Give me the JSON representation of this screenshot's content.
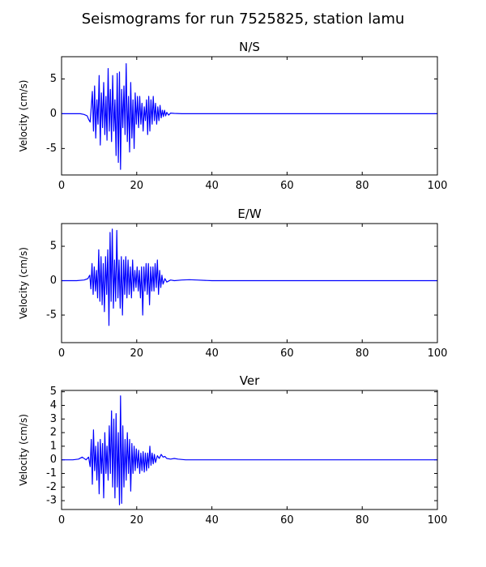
{
  "figure": {
    "suptitle": "Seismograms for run 7525825, station lamu"
  },
  "chart_data": [
    {
      "type": "line",
      "title": "N/S",
      "xlabel": "",
      "ylabel": "Velocity (cm/s)",
      "xlim": [
        0,
        100
      ],
      "ylim": [
        -8.8,
        8.2
      ],
      "xticks": [
        0,
        20,
        40,
        60,
        80,
        100
      ],
      "yticks": [
        -5,
        0,
        5
      ],
      "grid": false,
      "color": "#0000ff",
      "series": [
        {
          "x": [
            0,
            3,
            5,
            6,
            6.8,
            7.2,
            7.6,
            7.9,
            8.2,
            8.5,
            8.8,
            9.1,
            9.4,
            9.7,
            10.0,
            10.3,
            10.6,
            10.9,
            11.2,
            11.5,
            11.8,
            12.1,
            12.4,
            12.7,
            13.0,
            13.3,
            13.6,
            13.9,
            14.2,
            14.5,
            14.8,
            15.1,
            15.4,
            15.7,
            16.0,
            16.3,
            16.6,
            16.9,
            17.2,
            17.5,
            17.8,
            18.1,
            18.4,
            18.7,
            19.0,
            19.3,
            19.6,
            19.9,
            20.2,
            20.5,
            20.8,
            21.1,
            21.4,
            21.7,
            22.0,
            22.3,
            22.6,
            22.9,
            23.2,
            23.5,
            23.8,
            24.1,
            24.4,
            24.7,
            25.0,
            25.3,
            25.6,
            25.9,
            26.2,
            26.5,
            26.8,
            27.1,
            27.4,
            27.7,
            28.0,
            28.5,
            29.0,
            30,
            32,
            35,
            40,
            50,
            60,
            70,
            80,
            90,
            100
          ],
          "y": [
            0.0,
            0.0,
            0.0,
            -0.1,
            -0.3,
            -0.8,
            -1.2,
            1.0,
            3.2,
            -2.5,
            4.0,
            -3.5,
            2.0,
            -1.5,
            5.5,
            -4.5,
            3.0,
            -2.0,
            4.5,
            -3.0,
            2.5,
            -3.8,
            6.5,
            -2.5,
            3.5,
            -4.0,
            5.5,
            -2.5,
            2.0,
            -6.0,
            5.8,
            -7.0,
            6.0,
            -8.0,
            3.5,
            -2.0,
            4.0,
            -3.0,
            7.2,
            -4.0,
            2.5,
            -5.5,
            4.5,
            -3.5,
            2.0,
            -5.0,
            3.0,
            -1.5,
            2.5,
            -2.0,
            2.5,
            -1.5,
            1.5,
            -2.5,
            1.0,
            -1.0,
            2.0,
            -3.0,
            2.5,
            -2.5,
            2.0,
            -1.5,
            2.5,
            -1.0,
            1.5,
            -1.5,
            1.0,
            -1.0,
            1.2,
            -0.6,
            0.5,
            -0.4,
            0.5,
            -0.3,
            0.2,
            -0.2,
            0.1,
            0.05,
            0.0,
            0.0,
            0.0,
            0.0,
            0.0,
            0.0,
            0.0,
            0.0,
            0.0
          ]
        }
      ]
    },
    {
      "type": "line",
      "title": "E/W",
      "xlabel": "",
      "ylabel": "Velocity (cm/s)",
      "xlim": [
        0,
        100
      ],
      "ylim": [
        -9,
        8.3
      ],
      "xticks": [
        0,
        20,
        40,
        60,
        80,
        100
      ],
      "yticks": [
        -5,
        0,
        5
      ],
      "grid": false,
      "color": "#0000ff",
      "series": [
        {
          "x": [
            0,
            4,
            6,
            7,
            7.5,
            7.8,
            8.1,
            8.4,
            8.7,
            9.0,
            9.3,
            9.6,
            9.9,
            10.2,
            10.5,
            10.8,
            11.1,
            11.4,
            11.7,
            12.0,
            12.3,
            12.6,
            12.9,
            13.2,
            13.5,
            13.8,
            14.1,
            14.4,
            14.7,
            15.0,
            15.3,
            15.6,
            15.9,
            16.2,
            16.5,
            16.8,
            17.1,
            17.4,
            17.7,
            18.0,
            18.3,
            18.6,
            18.9,
            19.2,
            19.5,
            19.8,
            20.1,
            20.4,
            20.7,
            21.0,
            21.3,
            21.6,
            21.9,
            22.2,
            22.5,
            22.8,
            23.1,
            23.4,
            23.7,
            24.0,
            24.3,
            24.6,
            24.9,
            25.2,
            25.5,
            25.8,
            26.1,
            26.4,
            26.7,
            27.0,
            27.5,
            28.0,
            29,
            30,
            32,
            34,
            36,
            40,
            50,
            60,
            70,
            80,
            90,
            100
          ],
          "y": [
            0.0,
            0.0,
            0.1,
            0.3,
            0.8,
            -1.2,
            2.5,
            -2.0,
            2.0,
            -1.5,
            1.5,
            -2.5,
            4.5,
            -3.0,
            3.5,
            -3.5,
            2.5,
            -4.5,
            3.5,
            -2.0,
            4.5,
            -6.5,
            7.0,
            -3.0,
            7.5,
            -4.0,
            3.0,
            -3.0,
            7.3,
            -2.5,
            3.0,
            -4.0,
            3.5,
            -5.0,
            3.0,
            -2.0,
            3.5,
            -2.5,
            3.0,
            -2.0,
            2.0,
            -2.5,
            3.0,
            -1.5,
            1.5,
            -1.0,
            2.0,
            -1.5,
            1.5,
            -2.5,
            2.0,
            -5.0,
            2.0,
            -1.5,
            2.5,
            -2.0,
            2.5,
            -3.5,
            2.0,
            -1.5,
            2.0,
            -1.5,
            2.5,
            -1.0,
            3.0,
            -2.0,
            1.5,
            -1.0,
            0.8,
            -0.5,
            0.3,
            -0.2,
            0.1,
            0.0,
            0.1,
            0.15,
            0.1,
            0.0,
            0.0,
            0.0,
            0.0,
            0.0,
            0.0,
            0.0
          ]
        }
      ]
    },
    {
      "type": "line",
      "title": "Ver",
      "xlabel": "",
      "ylabel": "Velocity (cm/s)",
      "xlim": [
        0,
        100
      ],
      "ylim": [
        -3.65,
        5.1
      ],
      "xticks": [
        0,
        20,
        40,
        60,
        80,
        100
      ],
      "yticks": [
        -3,
        -2,
        -1,
        0,
        1,
        2,
        3,
        4,
        5
      ],
      "grid": false,
      "color": "#0000ff",
      "series": [
        {
          "x": [
            0,
            3,
            4.5,
            5.5,
            6.5,
            7.2,
            7.6,
            7.9,
            8.2,
            8.5,
            8.8,
            9.1,
            9.4,
            9.7,
            10.0,
            10.3,
            10.6,
            10.9,
            11.2,
            11.5,
            11.8,
            12.1,
            12.4,
            12.7,
            13.0,
            13.3,
            13.6,
            13.9,
            14.2,
            14.5,
            14.8,
            15.1,
            15.4,
            15.7,
            16.0,
            16.3,
            16.6,
            16.9,
            17.2,
            17.5,
            17.8,
            18.1,
            18.4,
            18.7,
            19.0,
            19.3,
            19.6,
            19.9,
            20.2,
            20.5,
            20.8,
            21.1,
            21.4,
            21.7,
            22.0,
            22.3,
            22.6,
            22.9,
            23.2,
            23.5,
            23.8,
            24.1,
            24.4,
            24.7,
            25.0,
            25.5,
            26.0,
            26.5,
            27.0,
            27.5,
            28.0,
            29,
            30,
            31,
            33,
            35,
            40,
            50,
            60,
            70,
            80,
            90,
            100
          ],
          "y": [
            0.0,
            0.0,
            0.05,
            0.2,
            0.0,
            0.2,
            -0.5,
            1.5,
            -1.8,
            2.2,
            -0.8,
            1.0,
            -1.5,
            1.3,
            -2.5,
            1.5,
            -1.0,
            1.2,
            -2.8,
            2.0,
            -1.0,
            1.0,
            -1.5,
            2.5,
            -1.0,
            3.6,
            -2.0,
            3.0,
            -2.8,
            3.4,
            -2.0,
            2.0,
            -3.3,
            4.7,
            -3.2,
            2.5,
            -2.0,
            1.5,
            -1.5,
            2.0,
            -1.0,
            1.5,
            -2.3,
            1.2,
            -1.0,
            1.0,
            -0.8,
            0.8,
            -0.6,
            0.7,
            -1.0,
            0.5,
            -0.8,
            0.6,
            -0.9,
            0.5,
            -0.8,
            0.5,
            -0.6,
            1.0,
            -0.4,
            0.5,
            -0.3,
            0.4,
            -0.2,
            0.3,
            0.1,
            0.4,
            0.2,
            0.25,
            0.1,
            0.05,
            0.1,
            0.05,
            0.0,
            0.0,
            0.0,
            0.0,
            0.0,
            0.0,
            0.0,
            0.0,
            0.0
          ]
        }
      ]
    }
  ]
}
